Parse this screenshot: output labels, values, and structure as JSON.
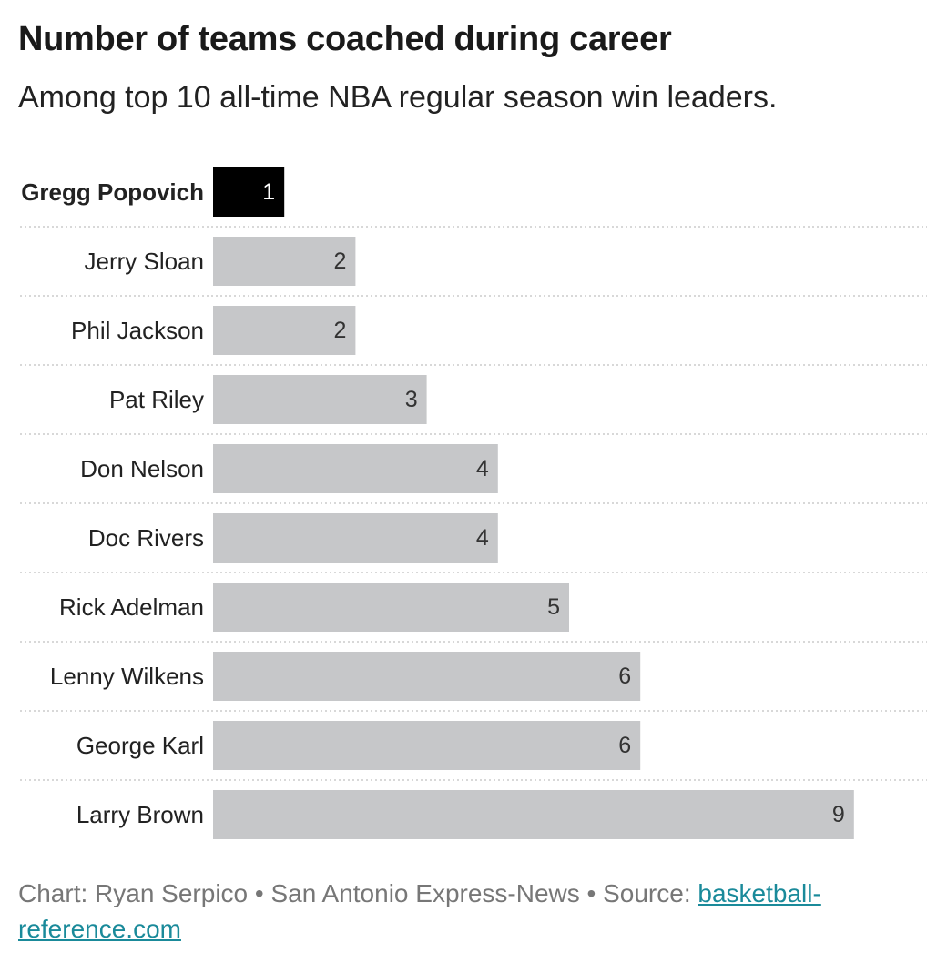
{
  "header": {
    "title": "Number of teams coached during career",
    "subtitle": "Among top 10 all-time NBA regular season win leaders."
  },
  "footer": {
    "credit": "Chart: Ryan Serpico • San Antonio Express-News • Source: ",
    "source_link": "basketball-reference.com"
  },
  "colors": {
    "highlight": "#000000",
    "bar": "#c6c7c9",
    "highlight_label": "#ffffff",
    "label": "#333333",
    "grid": "#cccccc"
  },
  "chart_data": {
    "type": "bar",
    "orientation": "horizontal",
    "categories": [
      "Gregg Popovich",
      "Jerry Sloan",
      "Phil Jackson",
      "Pat Riley",
      "Don Nelson",
      "Doc Rivers",
      "Rick Adelman",
      "Lenny Wilkens",
      "George Karl",
      "Larry Brown"
    ],
    "values": [
      1,
      2,
      2,
      3,
      4,
      4,
      5,
      6,
      6,
      9
    ],
    "highlight": "Gregg Popovich",
    "xlim": [
      0,
      10
    ],
    "grid": false
  }
}
